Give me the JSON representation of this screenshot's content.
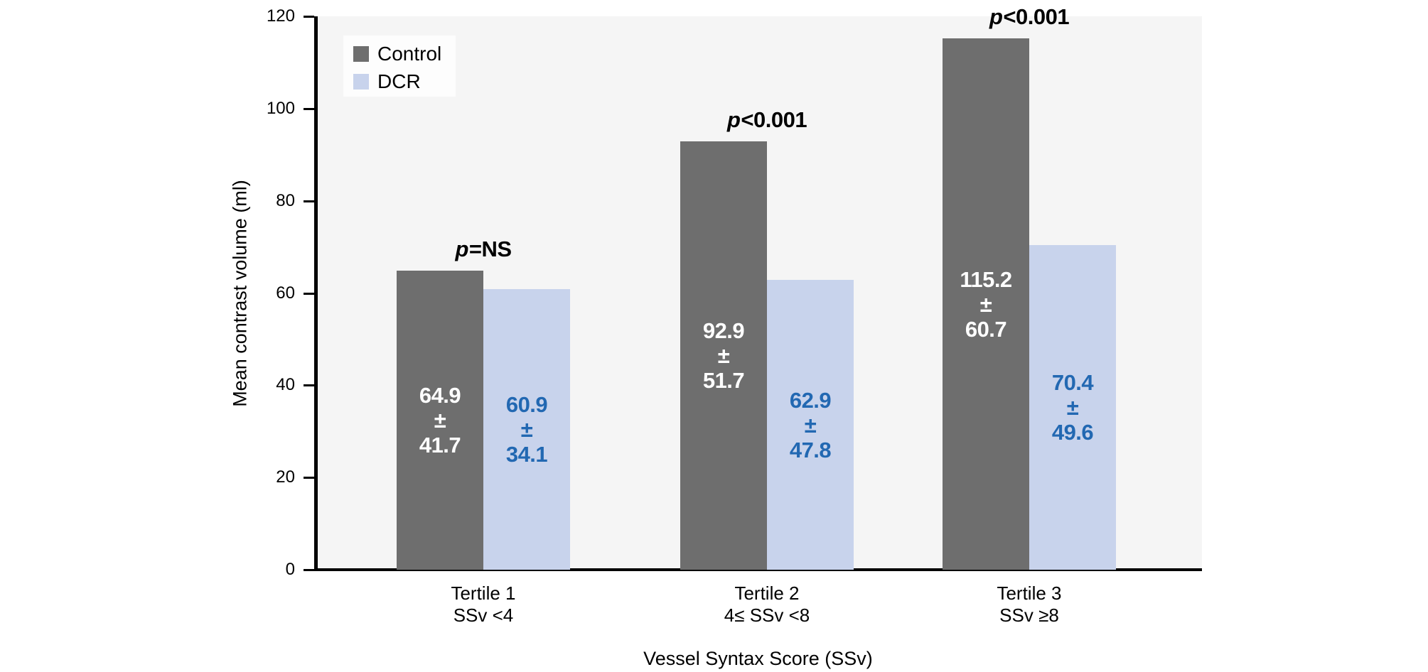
{
  "chart_data": {
    "type": "bar",
    "title": "",
    "xlabel": "Vessel Syntax Score (SSv)",
    "ylabel": "Mean contrast volume (ml)",
    "ylim": [
      0,
      120
    ],
    "yticks": [
      0,
      20,
      40,
      60,
      80,
      100,
      120
    ],
    "grid": false,
    "legend_position": "top-left",
    "plusminus": "±",
    "categories": [
      {
        "line1": "Tertile 1",
        "line2": "SSv <4"
      },
      {
        "line1": "Tertile 2",
        "line2": "4≤ SSv <8"
      },
      {
        "line1": "Tertile 3",
        "line2": "SSv ≥8"
      }
    ],
    "series": [
      {
        "name": "Control",
        "values": [
          64.9,
          92.9,
          115.2
        ],
        "sd": [
          41.7,
          51.7,
          60.7
        ],
        "color": "#6e6e6e",
        "label_color": "#ffffff"
      },
      {
        "name": "DCR",
        "values": [
          60.9,
          62.9,
          70.4
        ],
        "sd": [
          34.1,
          47.8,
          49.6
        ],
        "color": "#c8d3ec",
        "label_color": "#2268b2"
      }
    ],
    "p_values": [
      {
        "symbol": "p",
        "text": "=NS"
      },
      {
        "symbol": "p",
        "text": "<0.001"
      },
      {
        "symbol": "p",
        "text": "<0.001"
      }
    ]
  },
  "colors": {
    "plot_bg": "#f5f5f5",
    "axis": "#000000",
    "page_bg": "#ffffff",
    "legend_bg": "#fdfdfd"
  }
}
